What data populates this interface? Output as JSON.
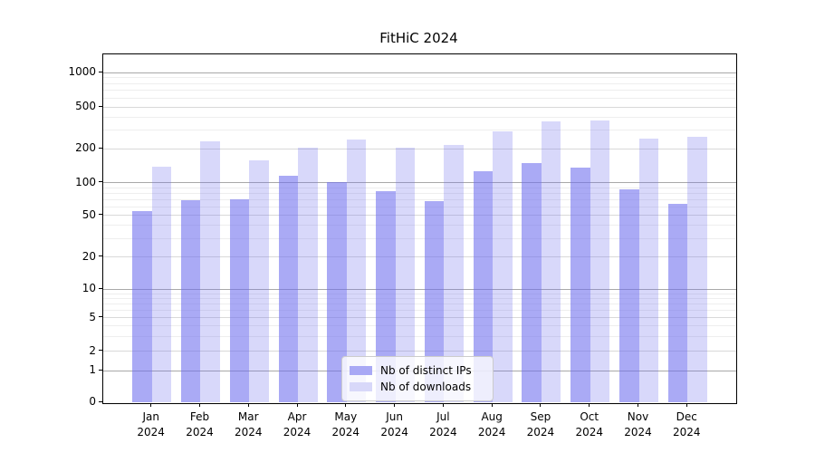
{
  "title": "FitHiC 2024",
  "legend": [
    {
      "label": "Nb of distinct IPs",
      "swatch_color": "#a9a9f5"
    },
    {
      "label": "Nb of downloads",
      "swatch_color": "#d8d8f9"
    }
  ],
  "y_axis": {
    "ticks": [
      0,
      1,
      2,
      5,
      10,
      20,
      50,
      100,
      200,
      500,
      1000
    ]
  },
  "x_axis": {
    "months": [
      "Jan",
      "Feb",
      "Mar",
      "Apr",
      "May",
      "Jun",
      "Jul",
      "Aug",
      "Sep",
      "Oct",
      "Nov",
      "Dec"
    ],
    "year": "2024"
  },
  "chart_data": {
    "type": "bar",
    "title": "FitHiC 2024",
    "categories": [
      "Jan 2024",
      "Feb 2024",
      "Mar 2024",
      "Apr 2024",
      "May 2024",
      "Jun 2024",
      "Jul 2024",
      "Aug 2024",
      "Sep 2024",
      "Oct 2024",
      "Nov 2024",
      "Dec 2024"
    ],
    "series": [
      {
        "name": "Nb of distinct IPs",
        "values": [
          55,
          69,
          70,
          115,
          101,
          84,
          68,
          127,
          149,
          137,
          87,
          64
        ]
      },
      {
        "name": "Nb of downloads",
        "values": [
          140,
          238,
          157,
          206,
          243,
          206,
          218,
          291,
          363,
          369,
          249,
          260
        ]
      }
    ],
    "xlabel": "",
    "ylabel": "",
    "yscale": "symlog",
    "ylim": [
      0,
      1500
    ],
    "grid": true,
    "legend_position": "lower center"
  },
  "colors": {
    "ips_bar_rgba": "rgba(110,110,238,0.59)",
    "downloads_bar_rgba": "rgba(110,110,238,0.27)",
    "grid_major": "#a9a9a9",
    "grid_mid": "#d9d9d9",
    "grid_minor": "#eeeeee"
  }
}
